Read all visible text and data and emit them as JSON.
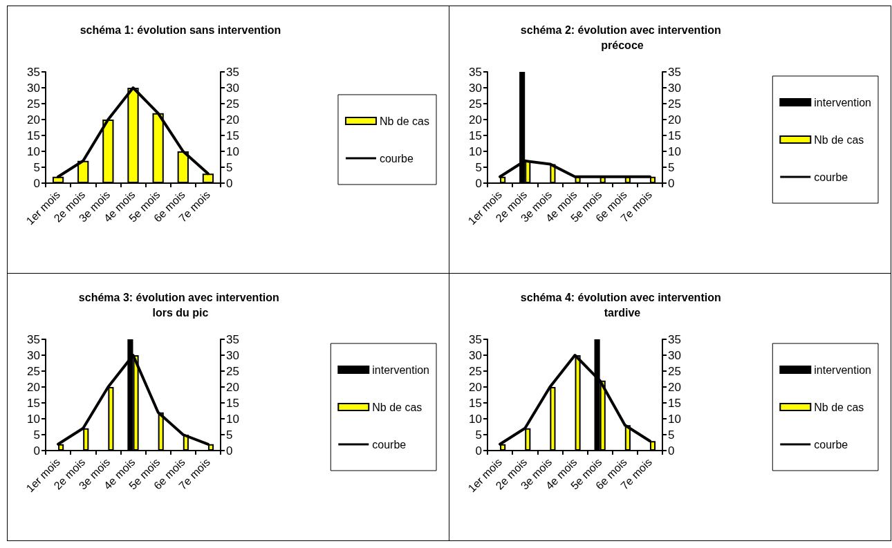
{
  "chart_data": [
    {
      "type": "bar",
      "title": "schéma 1: évolution sans intervention",
      "categories": [
        "1er mois",
        "2e mois",
        "3e mois",
        "4e mois",
        "5e mois",
        "6e mois",
        "7e mois"
      ],
      "series": [
        {
          "name": "Nb de cas",
          "color": "#ffff00",
          "values": [
            2,
            7,
            20,
            30,
            22,
            10,
            3
          ]
        },
        {
          "name": "courbe",
          "type": "line",
          "color": "#000000",
          "values": [
            2,
            7,
            20,
            30,
            22,
            10,
            3
          ]
        }
      ],
      "ylim": [
        0,
        35
      ],
      "yticks": [
        0,
        5,
        10,
        15,
        20,
        25,
        30,
        35
      ],
      "y2lim": [
        0,
        35
      ],
      "y2ticks": [
        0,
        5,
        10,
        15,
        20,
        25,
        30,
        35
      ],
      "legend": "right",
      "marker": "none",
      "line_style": "solid"
    },
    {
      "type": "bar",
      "title": "schéma 2: évolution avec intervention précoce",
      "categories": [
        "1er mois",
        "2e mois",
        "3e mois",
        "4e mois",
        "5e mois",
        "6e mois",
        "7e mois"
      ],
      "series": [
        {
          "name": "intervention",
          "color": "#000000",
          "values": [
            null,
            35,
            null,
            null,
            null,
            null,
            null
          ]
        },
        {
          "name": "Nb de cas",
          "color": "#ffff00",
          "values": [
            2,
            7,
            6,
            2,
            2,
            2,
            2
          ]
        },
        {
          "name": "courbe",
          "type": "line",
          "color": "#000000",
          "values": [
            2,
            7,
            6,
            2,
            2,
            2,
            2
          ]
        }
      ],
      "ylim": [
        0,
        35
      ],
      "yticks": [
        0,
        5,
        10,
        15,
        20,
        25,
        30,
        35
      ],
      "y2lim": [
        0,
        35
      ],
      "y2ticks": [
        0,
        5,
        10,
        15,
        20,
        25,
        30,
        35
      ],
      "legend": "right",
      "marker": "none",
      "line_style": "solid"
    },
    {
      "type": "bar",
      "title": "schéma 3: évolution avec intervention lors du pic",
      "categories": [
        "1er mois",
        "2e mois",
        "3e mois",
        "4e mois",
        "5e mois",
        "6e mois",
        "7e mois"
      ],
      "series": [
        {
          "name": "intervention",
          "color": "#000000",
          "values": [
            null,
            null,
            null,
            35,
            null,
            null,
            null
          ]
        },
        {
          "name": "Nb de cas",
          "color": "#ffff00",
          "values": [
            2,
            7,
            20,
            30,
            12,
            5,
            2
          ]
        },
        {
          "name": "courbe",
          "type": "line",
          "color": "#000000",
          "values": [
            2,
            7,
            20,
            30,
            12,
            5,
            2
          ]
        }
      ],
      "ylim": [
        0,
        35
      ],
      "yticks": [
        0,
        5,
        10,
        15,
        20,
        25,
        30,
        35
      ],
      "y2lim": [
        0,
        35
      ],
      "y2ticks": [
        0,
        5,
        10,
        15,
        20,
        25,
        30,
        35
      ],
      "legend": "right",
      "marker": "none",
      "line_style": "solid"
    },
    {
      "type": "bar",
      "title": "schéma 4: évolution avec intervention tardive",
      "categories": [
        "1er mois",
        "2e mois",
        "3e mois",
        "4e mois",
        "5e mois",
        "6e mois",
        "7e mois"
      ],
      "series": [
        {
          "name": "intervention",
          "color": "#000000",
          "values": [
            null,
            null,
            null,
            null,
            35,
            null,
            null
          ]
        },
        {
          "name": "Nb de cas",
          "color": "#ffff00",
          "values": [
            2,
            7,
            20,
            30,
            22,
            8,
            3
          ]
        },
        {
          "name": "courbe",
          "type": "line",
          "color": "#000000",
          "values": [
            2,
            7,
            20,
            30,
            22,
            8,
            3
          ]
        }
      ],
      "ylim": [
        0,
        35
      ],
      "yticks": [
        0,
        5,
        10,
        15,
        20,
        25,
        30,
        35
      ],
      "y2lim": [
        0,
        35
      ],
      "y2ticks": [
        0,
        5,
        10,
        15,
        20,
        25,
        30,
        35
      ],
      "legend": "right",
      "marker": "none",
      "line_style": "solid"
    }
  ]
}
